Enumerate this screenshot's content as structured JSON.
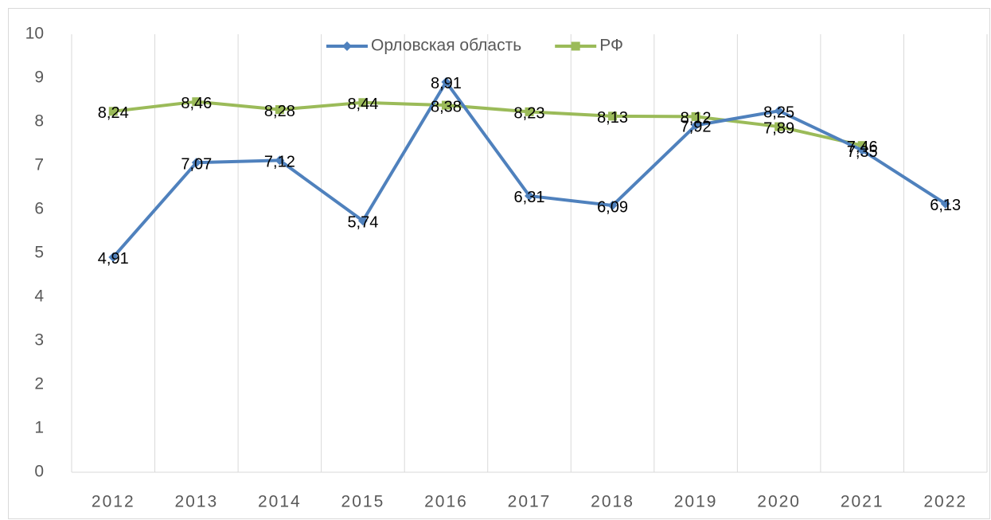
{
  "chart_data": {
    "type": "line",
    "categories": [
      "2012",
      "2013",
      "2014",
      "2015",
      "2016",
      "2017",
      "2018",
      "2019",
      "2020",
      "2021",
      "2022"
    ],
    "series": [
      {
        "name": "Орловская область",
        "color": "#4f81bd",
        "marker": "diamond",
        "values": [
          4.91,
          7.07,
          7.12,
          5.74,
          8.91,
          6.31,
          6.09,
          7.92,
          8.25,
          7.35,
          6.13
        ],
        "value_labels": [
          "4,91",
          "7,07",
          "7,12",
          "5,74",
          "8,91",
          "6,31",
          "6,09",
          "7,92",
          "8,25",
          "7,35",
          "6,13"
        ]
      },
      {
        "name": "РФ",
        "color": "#9bbb59",
        "marker": "square",
        "values": [
          8.24,
          8.46,
          8.28,
          8.44,
          8.38,
          8.23,
          8.13,
          8.12,
          7.89,
          7.46,
          null
        ],
        "value_labels": [
          "8,24",
          "8,46",
          "8,28",
          "8,44",
          "8,38",
          "8,23",
          "8,13",
          "8,12",
          "7,89",
          "7,46",
          null
        ]
      }
    ],
    "ylim": [
      0,
      10
    ],
    "yticks": [
      0,
      1,
      2,
      3,
      4,
      5,
      6,
      7,
      8,
      9,
      10
    ],
    "grid": "vertical",
    "legend": "top"
  }
}
